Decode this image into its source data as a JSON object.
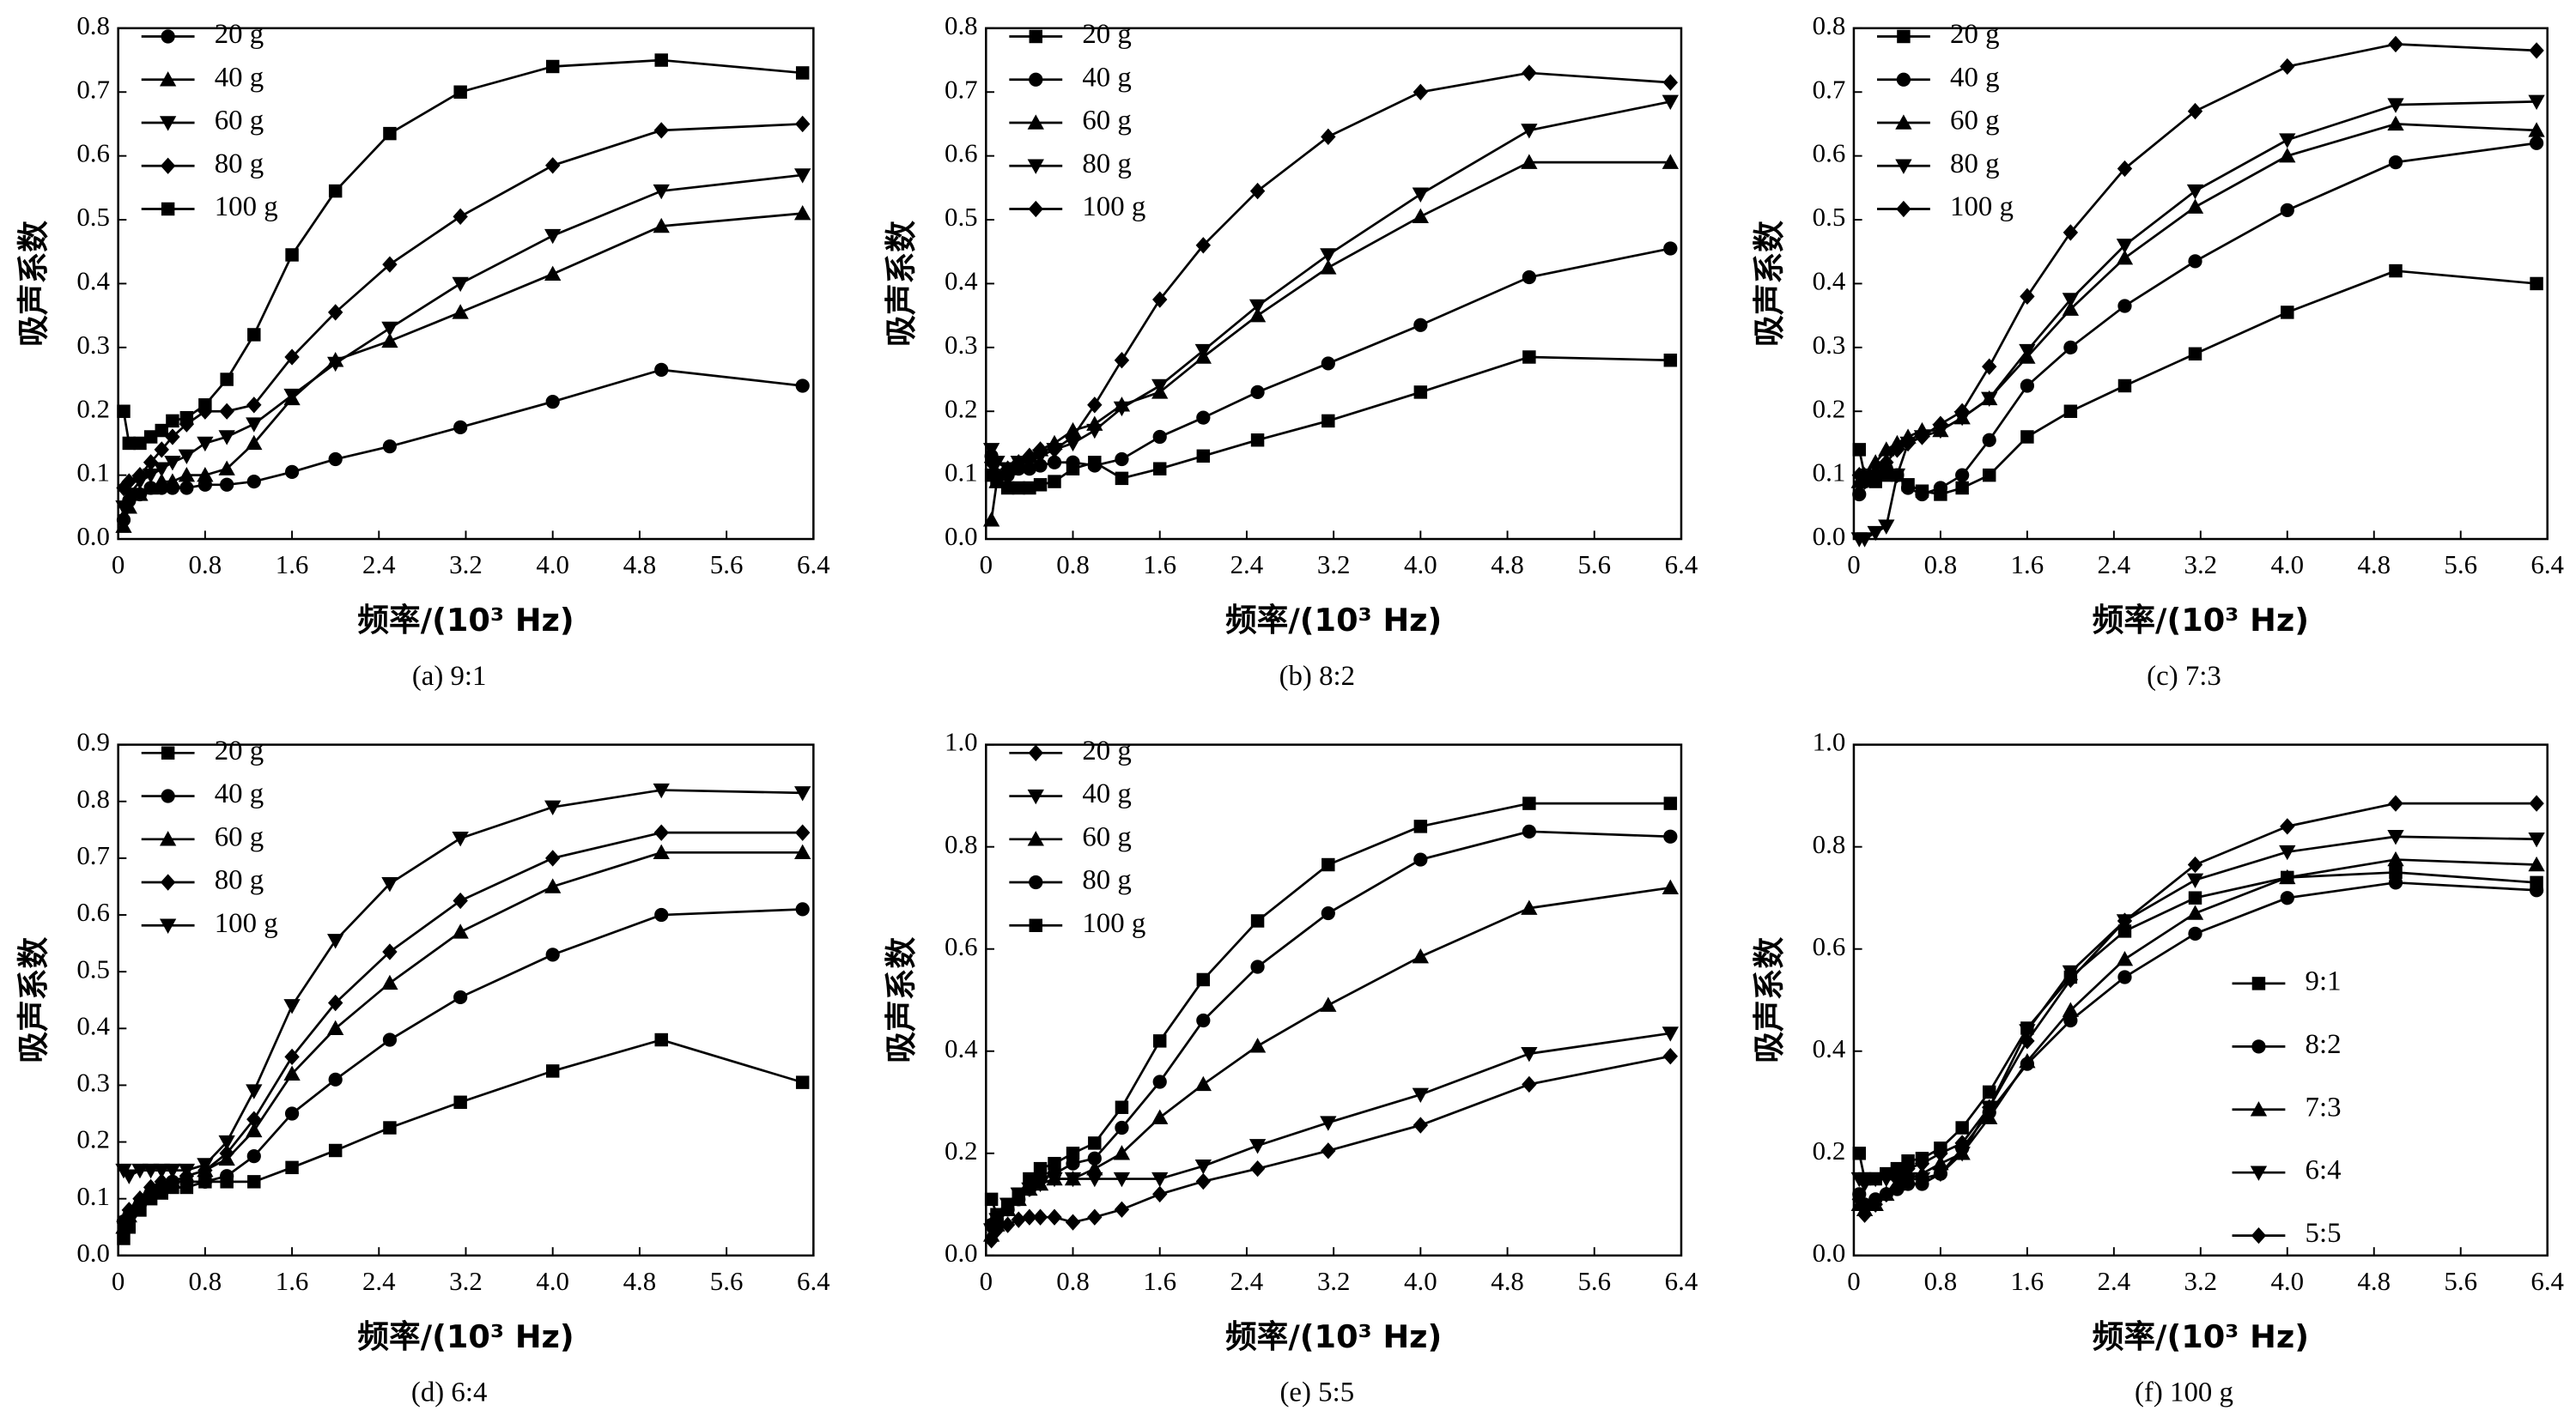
{
  "chart_data": [
    {
      "type": "line",
      "caption": "(a)  9:1",
      "xlabel": "频率/(10³ Hz)",
      "ylabel": "吸声系数",
      "legend": "upper left",
      "xlim": [
        0,
        6.4
      ],
      "xticks": [
        0,
        0.8,
        1.6,
        2.4,
        3.2,
        {
          "value": 4,
          "label": "4.0"
        },
        4.8,
        5.6,
        6.4
      ],
      "ylim": [
        0,
        0.8
      ],
      "yticks": [
        {
          "value": 0,
          "label": "0.0"
        },
        0.1,
        0.2,
        0.3,
        0.4,
        0.5,
        0.6,
        0.7,
        0.8
      ],
      "x": [
        0.05,
        0.1,
        0.2,
        0.3,
        0.4,
        0.5,
        0.63,
        0.8,
        1.0,
        1.25,
        1.6,
        2.0,
        2.5,
        3.15,
        4.0,
        5.0,
        6.3
      ],
      "series": [
        {
          "name": "20 g",
          "marker": "circle",
          "color": "#000000",
          "values": [
            0.03,
            0.06,
            0.07,
            0.08,
            0.08,
            0.08,
            0.08,
            0.085,
            0.085,
            0.09,
            0.105,
            0.125,
            0.145,
            0.175,
            0.215,
            0.265,
            0.24
          ]
        },
        {
          "name": "40 g",
          "marker": "triangle-up",
          "color": "#000000",
          "values": [
            0.02,
            0.05,
            0.07,
            0.08,
            0.09,
            0.09,
            0.1,
            0.1,
            0.11,
            0.15,
            0.22,
            0.28,
            0.31,
            0.355,
            0.415,
            0.49,
            0.51
          ]
        },
        {
          "name": "60 g",
          "marker": "triangle-down",
          "color": "#000000",
          "values": [
            0.05,
            0.07,
            0.09,
            0.1,
            0.11,
            0.12,
            0.13,
            0.15,
            0.16,
            0.18,
            0.225,
            0.275,
            0.33,
            0.4,
            0.475,
            0.545,
            0.57
          ]
        },
        {
          "name": "80 g",
          "marker": "diamond",
          "color": "#000000",
          "values": [
            0.08,
            0.09,
            0.1,
            0.12,
            0.14,
            0.16,
            0.18,
            0.2,
            0.2,
            0.21,
            0.285,
            0.355,
            0.43,
            0.505,
            0.585,
            0.64,
            0.65
          ]
        },
        {
          "name": "100 g",
          "marker": "square",
          "color": "#000000",
          "values": [
            0.2,
            0.15,
            0.15,
            0.16,
            0.17,
            0.185,
            0.19,
            0.21,
            0.25,
            0.32,
            0.445,
            0.545,
            0.635,
            0.7,
            0.74,
            0.75,
            0.73
          ]
        }
      ]
    },
    {
      "type": "line",
      "caption": "(b)  8:2",
      "xlabel": "频率/(10³ Hz)",
      "ylabel": "吸声系数",
      "legend": "upper left",
      "xlim": [
        0,
        6.4
      ],
      "xticks": [
        0,
        0.8,
        1.6,
        2.4,
        3.2,
        {
          "value": 4,
          "label": "4.0"
        },
        4.8,
        5.6,
        6.4
      ],
      "ylim": [
        0,
        0.8
      ],
      "yticks": [
        {
          "value": 0,
          "label": "0.0"
        },
        0.1,
        0.2,
        0.3,
        0.4,
        0.5,
        0.6,
        0.7,
        0.8
      ],
      "x": [
        0.05,
        0.1,
        0.2,
        0.3,
        0.4,
        0.5,
        0.63,
        0.8,
        1.0,
        1.25,
        1.6,
        2.0,
        2.5,
        3.15,
        4.0,
        5.0,
        6.3
      ],
      "series": [
        {
          "name": "20 g",
          "marker": "square",
          "color": "#000000",
          "values": [
            0.1,
            0.09,
            0.08,
            0.08,
            0.08,
            0.085,
            0.09,
            0.11,
            0.12,
            0.095,
            0.11,
            0.13,
            0.155,
            0.185,
            0.23,
            0.285,
            0.28
          ]
        },
        {
          "name": "40 g",
          "marker": "circle",
          "color": "#000000",
          "values": [
            0.13,
            0.1,
            0.1,
            0.11,
            0.11,
            0.115,
            0.12,
            0.12,
            0.115,
            0.125,
            0.16,
            0.19,
            0.23,
            0.275,
            0.335,
            0.41,
            0.455
          ]
        },
        {
          "name": "60 g",
          "marker": "triangle-up",
          "color": "#000000",
          "values": [
            0.03,
            0.09,
            0.11,
            0.12,
            0.13,
            0.14,
            0.15,
            0.17,
            0.18,
            0.21,
            0.23,
            0.285,
            0.35,
            0.425,
            0.505,
            0.59,
            0.59
          ]
        },
        {
          "name": "80 g",
          "marker": "triangle-down",
          "color": "#000000",
          "values": [
            0.14,
            0.12,
            0.11,
            0.12,
            0.12,
            0.13,
            0.14,
            0.15,
            0.17,
            0.205,
            0.24,
            0.295,
            0.365,
            0.445,
            0.54,
            0.64,
            0.685
          ]
        },
        {
          "name": "100 g",
          "marker": "diamond",
          "color": "#000000",
          "values": [
            0.12,
            0.1,
            0.11,
            0.12,
            0.13,
            0.14,
            0.14,
            0.16,
            0.21,
            0.28,
            0.375,
            0.46,
            0.545,
            0.63,
            0.7,
            0.73,
            0.715
          ]
        }
      ]
    },
    {
      "type": "line",
      "caption": "(c)  7:3",
      "xlabel": "频率/(10³ Hz)",
      "ylabel": "吸声系数",
      "legend": "upper left",
      "xlim": [
        0,
        6.4
      ],
      "xticks": [
        0,
        0.8,
        1.6,
        2.4,
        3.2,
        {
          "value": 4,
          "label": "4.0"
        },
        4.8,
        5.6,
        6.4
      ],
      "ylim": [
        0,
        0.8
      ],
      "yticks": [
        {
          "value": 0,
          "label": "0.0"
        },
        0.1,
        0.2,
        0.3,
        0.4,
        0.5,
        0.6,
        0.7,
        0.8
      ],
      "x": [
        0.05,
        0.1,
        0.2,
        0.3,
        0.4,
        0.5,
        0.63,
        0.8,
        1.0,
        1.25,
        1.6,
        2.0,
        2.5,
        3.15,
        4.0,
        5.0,
        6.3
      ],
      "series": [
        {
          "name": "20 g",
          "marker": "square",
          "color": "#000000",
          "values": [
            0.14,
            0.1,
            0.09,
            0.1,
            0.1,
            0.085,
            0.075,
            0.07,
            0.08,
            0.1,
            0.16,
            0.2,
            0.24,
            0.29,
            0.355,
            0.42,
            0.4
          ]
        },
        {
          "name": "40 g",
          "marker": "circle",
          "color": "#000000",
          "values": [
            0.07,
            0.09,
            0.1,
            0.11,
            0.1,
            0.08,
            0.07,
            0.08,
            0.1,
            0.155,
            0.24,
            0.3,
            0.365,
            0.435,
            0.515,
            0.59,
            0.62
          ]
        },
        {
          "name": "60 g",
          "marker": "triangle-up",
          "color": "#000000",
          "values": [
            0.09,
            0.1,
            0.12,
            0.14,
            0.15,
            0.16,
            0.17,
            0.17,
            0.19,
            0.22,
            0.285,
            0.36,
            0.44,
            0.52,
            0.6,
            0.65,
            0.64
          ]
        },
        {
          "name": "80 g",
          "marker": "triangle-down",
          "color": "#000000",
          "values": [
            0.0,
            0.0,
            0.01,
            0.02,
            0.1,
            0.15,
            0.16,
            0.17,
            0.19,
            0.22,
            0.295,
            0.375,
            0.46,
            0.545,
            0.625,
            0.68,
            0.685
          ]
        },
        {
          "name": "100 g",
          "marker": "diamond",
          "color": "#000000",
          "values": [
            0.1,
            0.09,
            0.1,
            0.12,
            0.14,
            0.15,
            0.16,
            0.18,
            0.2,
            0.27,
            0.38,
            0.48,
            0.58,
            0.67,
            0.74,
            0.775,
            0.765
          ]
        }
      ]
    },
    {
      "type": "line",
      "caption": "(d)  6:4",
      "xlabel": "频率/(10³ Hz)",
      "ylabel": "吸声系数",
      "legend": "upper left",
      "xlim": [
        0,
        6.4
      ],
      "xticks": [
        0,
        0.8,
        1.6,
        2.4,
        3.2,
        {
          "value": 4,
          "label": "4.0"
        },
        4.8,
        5.6,
        6.4
      ],
      "ylim": [
        0,
        0.9
      ],
      "yticks": [
        {
          "value": 0,
          "label": "0.0"
        },
        0.1,
        0.2,
        0.3,
        0.4,
        0.5,
        0.6,
        0.7,
        0.8,
        0.9
      ],
      "x": [
        0.05,
        0.1,
        0.2,
        0.3,
        0.4,
        0.5,
        0.63,
        0.8,
        1.0,
        1.25,
        1.6,
        2.0,
        2.5,
        3.15,
        4.0,
        5.0,
        6.3
      ],
      "series": [
        {
          "name": "20 g",
          "marker": "square",
          "color": "#000000",
          "values": [
            0.03,
            0.05,
            0.08,
            0.1,
            0.11,
            0.12,
            0.12,
            0.13,
            0.13,
            0.13,
            0.155,
            0.185,
            0.225,
            0.27,
            0.325,
            0.38,
            0.305
          ]
        },
        {
          "name": "40 g",
          "marker": "circle",
          "color": "#000000",
          "values": [
            0.06,
            0.07,
            0.09,
            0.11,
            0.12,
            0.13,
            0.13,
            0.13,
            0.14,
            0.175,
            0.25,
            0.31,
            0.38,
            0.455,
            0.53,
            0.6,
            0.61
          ]
        },
        {
          "name": "60 g",
          "marker": "triangle-up",
          "color": "#000000",
          "values": [
            0.05,
            0.07,
            0.1,
            0.12,
            0.13,
            0.13,
            0.14,
            0.15,
            0.17,
            0.22,
            0.32,
            0.4,
            0.48,
            0.57,
            0.65,
            0.71,
            0.71
          ]
        },
        {
          "name": "80 g",
          "marker": "diamond",
          "color": "#000000",
          "values": [
            0.06,
            0.08,
            0.1,
            0.12,
            0.13,
            0.13,
            0.14,
            0.15,
            0.18,
            0.24,
            0.35,
            0.445,
            0.535,
            0.625,
            0.7,
            0.745,
            0.745
          ]
        },
        {
          "name": "100 g",
          "marker": "triangle-down",
          "color": "#000000",
          "values": [
            0.15,
            0.14,
            0.15,
            0.15,
            0.15,
            0.15,
            0.15,
            0.16,
            0.2,
            0.29,
            0.44,
            0.555,
            0.655,
            0.735,
            0.79,
            0.82,
            0.815
          ]
        }
      ]
    },
    {
      "type": "line",
      "caption": "(e)  5:5",
      "xlabel": "频率/(10³ Hz)",
      "ylabel": "吸声系数",
      "legend": "upper left",
      "xlim": [
        0,
        6.4
      ],
      "xticks": [
        0,
        0.8,
        1.6,
        2.4,
        3.2,
        {
          "value": 4,
          "label": "4.0"
        },
        4.8,
        5.6,
        6.4
      ],
      "ylim": [
        0,
        1
      ],
      "yticks": [
        {
          "value": 0,
          "label": "0.0"
        },
        0.2,
        0.4,
        0.6,
        0.8,
        {
          "value": 1,
          "label": "1.0"
        }
      ],
      "x": [
        0.05,
        0.1,
        0.2,
        0.3,
        0.4,
        0.5,
        0.63,
        0.8,
        1.0,
        1.25,
        1.6,
        2.0,
        2.5,
        3.15,
        4.0,
        5.0,
        6.3
      ],
      "series": [
        {
          "name": "20 g",
          "marker": "diamond",
          "color": "#000000",
          "values": [
            0.03,
            0.05,
            0.06,
            0.07,
            0.075,
            0.075,
            0.075,
            0.065,
            0.075,
            0.09,
            0.12,
            0.145,
            0.17,
            0.205,
            0.255,
            0.335,
            0.39
          ]
        },
        {
          "name": "40 g",
          "marker": "triangle-down",
          "color": "#000000",
          "values": [
            0.05,
            0.07,
            0.1,
            0.12,
            0.13,
            0.14,
            0.15,
            0.15,
            0.15,
            0.15,
            0.15,
            0.175,
            0.215,
            0.26,
            0.315,
            0.395,
            0.435
          ]
        },
        {
          "name": "60 g",
          "marker": "triangle-up",
          "color": "#000000",
          "values": [
            0.04,
            0.06,
            0.09,
            0.11,
            0.13,
            0.14,
            0.15,
            0.15,
            0.17,
            0.2,
            0.27,
            0.335,
            0.41,
            0.49,
            0.585,
            0.68,
            0.72
          ]
        },
        {
          "name": "80 g",
          "marker": "circle",
          "color": "#000000",
          "values": [
            0.06,
            0.07,
            0.09,
            0.11,
            0.13,
            0.15,
            0.16,
            0.18,
            0.19,
            0.25,
            0.34,
            0.46,
            0.565,
            0.67,
            0.775,
            0.83,
            0.82
          ]
        },
        {
          "name": "100 g",
          "marker": "square",
          "color": "#000000",
          "values": [
            0.11,
            0.08,
            0.1,
            0.12,
            0.15,
            0.17,
            0.18,
            0.2,
            0.22,
            0.29,
            0.42,
            0.54,
            0.655,
            0.765,
            0.84,
            0.885,
            0.885
          ]
        }
      ]
    },
    {
      "type": "line",
      "caption": "(f)  100 g",
      "xlabel": "频率/(10³ Hz)",
      "ylabel": "吸声系数",
      "legend": "center right",
      "xlim": [
        0,
        6.4
      ],
      "xticks": [
        0,
        0.8,
        1.6,
        2.4,
        3.2,
        {
          "value": 4,
          "label": "4.0"
        },
        4.8,
        5.6,
        6.4
      ],
      "ylim": [
        0,
        1
      ],
      "yticks": [
        {
          "value": 0,
          "label": "0.0"
        },
        0.2,
        0.4,
        0.6,
        0.8,
        {
          "value": 1,
          "label": "1.0"
        }
      ],
      "x": [
        0.05,
        0.1,
        0.2,
        0.3,
        0.4,
        0.5,
        0.63,
        0.8,
        1.0,
        1.25,
        1.6,
        2.0,
        2.5,
        3.15,
        4.0,
        5.0,
        6.3
      ],
      "series": [
        {
          "name": "9:1",
          "marker": "square",
          "color": "#000000",
          "values": [
            0.2,
            0.15,
            0.15,
            0.16,
            0.17,
            0.185,
            0.19,
            0.21,
            0.25,
            0.32,
            0.445,
            0.545,
            0.635,
            0.7,
            0.74,
            0.75,
            0.73
          ]
        },
        {
          "name": "8:2",
          "marker": "circle",
          "color": "#000000",
          "values": [
            0.12,
            0.1,
            0.11,
            0.12,
            0.13,
            0.14,
            0.14,
            0.16,
            0.21,
            0.28,
            0.375,
            0.46,
            0.545,
            0.63,
            0.7,
            0.73,
            0.715
          ]
        },
        {
          "name": "7:3",
          "marker": "triangle-up",
          "color": "#000000",
          "values": [
            0.1,
            0.09,
            0.1,
            0.12,
            0.14,
            0.15,
            0.16,
            0.18,
            0.2,
            0.27,
            0.38,
            0.48,
            0.58,
            0.67,
            0.74,
            0.775,
            0.765
          ]
        },
        {
          "name": "6:4",
          "marker": "triangle-down",
          "color": "#000000",
          "values": [
            0.15,
            0.14,
            0.15,
            0.15,
            0.15,
            0.15,
            0.15,
            0.16,
            0.2,
            0.29,
            0.44,
            0.555,
            0.655,
            0.735,
            0.79,
            0.82,
            0.815
          ]
        },
        {
          "name": "5:5",
          "marker": "diamond",
          "color": "#000000",
          "values": [
            0.11,
            0.08,
            0.1,
            0.12,
            0.15,
            0.17,
            0.18,
            0.2,
            0.22,
            0.29,
            0.42,
            0.54,
            0.655,
            0.765,
            0.84,
            0.885,
            0.885
          ]
        }
      ]
    }
  ]
}
